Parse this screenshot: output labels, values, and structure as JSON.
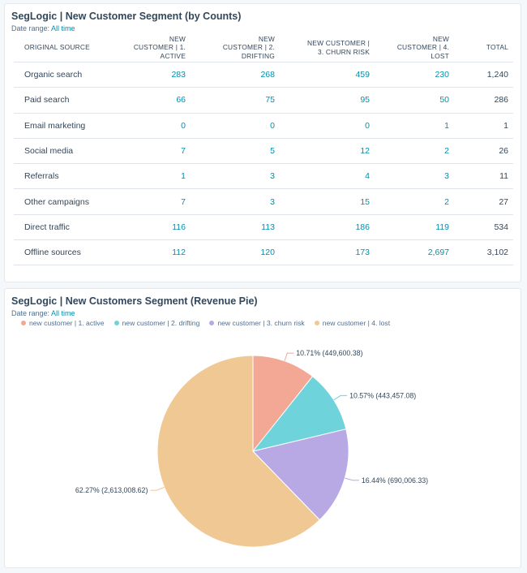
{
  "table_card": {
    "title": "SegLogic | New Customer Segment (by Counts)",
    "date_range_label": "Date range:",
    "date_range_value": "All time",
    "columns": [
      "ORIGINAL SOURCE",
      "NEW CUSTOMER | 1. ACTIVE",
      "NEW CUSTOMER | 2. DRIFTING",
      "NEW CUSTOMER | 3. CHURN RISK",
      "NEW CUSTOMER | 4. LOST",
      "TOTAL"
    ],
    "rows": [
      {
        "source": "Organic search",
        "active": "283",
        "drifting": "268",
        "churn_risk": "459",
        "lost": "230",
        "total": "1,240"
      },
      {
        "source": "Paid search",
        "active": "66",
        "drifting": "75",
        "churn_risk": "95",
        "lost": "50",
        "total": "286"
      },
      {
        "source": "Email marketing",
        "active": "0",
        "drifting": "0",
        "churn_risk": "0",
        "lost": "1",
        "total": "1"
      },
      {
        "source": "Social media",
        "active": "7",
        "drifting": "5",
        "churn_risk": "12",
        "lost": "2",
        "total": "26"
      },
      {
        "source": "Referrals",
        "active": "1",
        "drifting": "3",
        "churn_risk": "4",
        "lost": "3",
        "total": "11"
      },
      {
        "source": "Other campaigns",
        "active": "7",
        "drifting": "3",
        "churn_risk": "15",
        "lost": "2",
        "total": "27"
      },
      {
        "source": "Direct traffic",
        "active": "116",
        "drifting": "113",
        "churn_risk": "186",
        "lost": "119",
        "total": "534"
      },
      {
        "source": "Offline sources",
        "active": "112",
        "drifting": "120",
        "churn_risk": "173",
        "lost": "2,697",
        "total": "3,102"
      }
    ]
  },
  "pie_card": {
    "title": "SegLogic | New Customers Segment (Revenue Pie)",
    "date_range_label": "Date range:",
    "date_range_value": "All time"
  },
  "chart_data": {
    "type": "pie",
    "title": "SegLogic | New Customers Segment (Revenue Pie)",
    "legend_position": "top-left",
    "slices": [
      {
        "name": "new customer | 1. active",
        "value": 449600.38,
        "percent": 10.71,
        "label": "10.71% (449,600.38)",
        "color": "#f2a894"
      },
      {
        "name": "new customer | 2. drifting",
        "value": 443457.08,
        "percent": 10.57,
        "label": "10.57% (443,457.08)",
        "color": "#6fd3db"
      },
      {
        "name": "new customer | 3. churn risk",
        "value": 690006.33,
        "percent": 16.44,
        "label": "16.44% (690,006.33)",
        "color": "#b8a9e5"
      },
      {
        "name": "new customer | 4. lost",
        "value": 2613008.62,
        "percent": 62.27,
        "label": "62.27% (2,613,008.62)",
        "color": "#f0c894"
      }
    ]
  },
  "colors": {
    "link": "#0091ae",
    "text": "#33475b",
    "muted": "#516f90"
  }
}
